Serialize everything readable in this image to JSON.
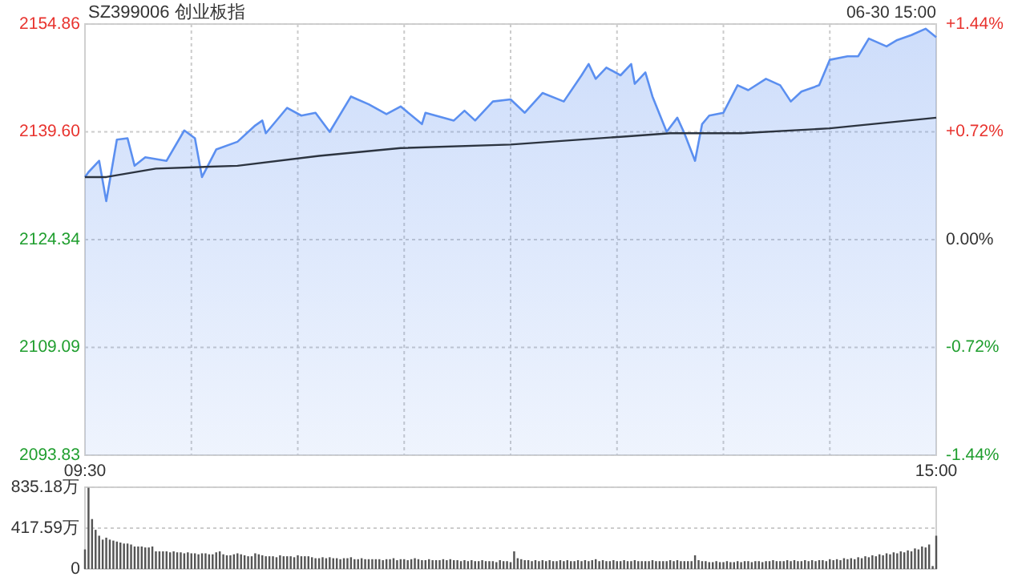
{
  "chart_data": [
    {
      "type": "area",
      "title": "SZ399006 创业板指",
      "subtitle": "06-30 15:00",
      "categories": [
        "09:30",
        null,
        null,
        null,
        null,
        null,
        null,
        null,
        null,
        null,
        null,
        null,
        null,
        null,
        null,
        null,
        null,
        null,
        null,
        null,
        null,
        null,
        null,
        null,
        null,
        null,
        null,
        null,
        null,
        null,
        null,
        null,
        null,
        null,
        null,
        null,
        null,
        null,
        null,
        null,
        null,
        null,
        null,
        null,
        null,
        null,
        null,
        null,
        null,
        null,
        null,
        null,
        null,
        null,
        null,
        null,
        null,
        null,
        null,
        null,
        null,
        null,
        null,
        null,
        null,
        null,
        null,
        null,
        null,
        null,
        null,
        null,
        null,
        null,
        null,
        null,
        null,
        null,
        null,
        null,
        null,
        null,
        null,
        null,
        null,
        null,
        null,
        null,
        null,
        null,
        null,
        null,
        null,
        null,
        null,
        null,
        null,
        null,
        null,
        null,
        null,
        null,
        null,
        null,
        null,
        null,
        null,
        null,
        null,
        null,
        null,
        null,
        null,
        null,
        null,
        null,
        null,
        null,
        null,
        null,
        null,
        null,
        null,
        null,
        null,
        null,
        null,
        null,
        null,
        null,
        null,
        null,
        null,
        null,
        null,
        null,
        null,
        null,
        null,
        null,
        null,
        null,
        null,
        null,
        null,
        null,
        null,
        null,
        null,
        null,
        null,
        null,
        null,
        null,
        null,
        null,
        null,
        null,
        null,
        null,
        null,
        null,
        null,
        null,
        null,
        null,
        null,
        null,
        null,
        null,
        null,
        null,
        null,
        null,
        null,
        null,
        null,
        null,
        null,
        null,
        null,
        null,
        null,
        null,
        null,
        null,
        null,
        null,
        null,
        null,
        null,
        null,
        null,
        null,
        null,
        null,
        null,
        null,
        null,
        null,
        null,
        null,
        null,
        null,
        null,
        null,
        null,
        null,
        null,
        null,
        null,
        null,
        null,
        null,
        null,
        null,
        null,
        null,
        null,
        null,
        null,
        null,
        null,
        null,
        null,
        null,
        null,
        null,
        null,
        null,
        null,
        null,
        null,
        null,
        null,
        null,
        null,
        null,
        null,
        null,
        "15:00"
      ],
      "series": [
        {
          "color": "#5b8ff0",
          "values": [
            2133.2,
            2133.9,
            null,
            null,
            2135.5,
            null,
            2129.8,
            null,
            null,
            2138.5,
            null,
            null,
            2138.7,
            null,
            2134.8,
            null,
            null,
            2136.0,
            null,
            null,
            null,
            null,
            null,
            2135.5,
            null,
            null,
            null,
            null,
            2139.8,
            null,
            null,
            2138.7,
            null,
            2133.2,
            null,
            null,
            null,
            2137.1,
            null,
            null,
            null,
            null,
            null,
            2138.2,
            null,
            null,
            null,
            null,
            2140.5,
            null,
            2141.2,
            2139.4,
            null,
            null,
            null,
            null,
            null,
            2143.0,
            null,
            null,
            null,
            2141.9,
            null,
            null,
            null,
            2142.3,
            null,
            null,
            null,
            2139.6,
            null,
            null,
            null,
            null,
            null,
            2144.6,
            null,
            null,
            null,
            null,
            2143.5,
            null,
            null,
            null,
            null,
            2142.1,
            null,
            null,
            null,
            2143.2,
            null,
            null,
            null,
            null,
            null,
            2140.7,
            2142.3,
            null,
            null,
            null,
            null,
            null,
            null,
            null,
            2141.2,
            null,
            null,
            2142.6,
            null,
            null,
            2141.2,
            null,
            null,
            null,
            null,
            2143.9,
            null,
            null,
            null,
            null,
            2144.2,
            null,
            null,
            null,
            2142.3,
            null,
            null,
            null,
            null,
            2145.1,
            null,
            null,
            null,
            null,
            null,
            2143.9,
            null,
            null,
            null,
            null,
            2147.6,
            null,
            2149.2,
            null,
            2147.1,
            null,
            null,
            2148.7,
            null,
            null,
            null,
            2147.6,
            null,
            null,
            2149.2,
            2146.4,
            null,
            null,
            2148.0,
            null,
            2144.6,
            null,
            null,
            null,
            2139.6,
            null,
            null,
            2141.6,
            null,
            2139.4,
            null,
            null,
            2135.5,
            null,
            2140.7,
            null,
            2141.9,
            null,
            null,
            null,
            2142.3,
            null,
            null,
            null,
            2146.2,
            null,
            null,
            2145.5,
            null,
            null,
            null,
            null,
            2147.1,
            null,
            null,
            null,
            2146.2,
            null,
            null,
            2143.9,
            null,
            null,
            2145.3,
            null,
            null,
            null,
            null,
            2146.2,
            null,
            null,
            2149.8,
            null,
            null,
            null,
            null,
            2150.3,
            null,
            null,
            2150.3,
            null,
            null,
            2152.8,
            null,
            null,
            null,
            null,
            2151.7,
            null,
            null,
            2152.6,
            null,
            null,
            null,
            2153.3,
            null,
            null,
            null,
            2154.2,
            null,
            null,
            2153.0
          ]
        },
        {
          "type": "line",
          "color": "#2c3440",
          "values": [
            2133.2,
            null,
            null,
            null,
            null,
            null,
            2133.2,
            null,
            null,
            null,
            null,
            null,
            null,
            null,
            null,
            null,
            null,
            null,
            null,
            null,
            2134.4,
            null,
            null,
            null,
            null,
            null,
            null,
            null,
            null,
            null,
            null,
            null,
            null,
            null,
            null,
            null,
            null,
            null,
            null,
            null,
            null,
            null,
            null,
            2134.8,
            null,
            null,
            null,
            null,
            null,
            null,
            null,
            null,
            null,
            null,
            null,
            null,
            null,
            null,
            null,
            null,
            null,
            null,
            null,
            null,
            null,
            null,
            2136.2,
            null,
            null,
            null,
            null,
            null,
            null,
            null,
            null,
            null,
            null,
            null,
            null,
            null,
            null,
            null,
            null,
            null,
            null,
            null,
            null,
            null,
            null,
            2137.3,
            null,
            null,
            null,
            null,
            null,
            null,
            null,
            null,
            null,
            null,
            null,
            null,
            null,
            null,
            null,
            null,
            null,
            null,
            null,
            null,
            null,
            null,
            null,
            null,
            null,
            null,
            null,
            null,
            null,
            null,
            2137.8,
            null,
            null,
            null,
            null,
            null,
            null,
            null,
            null,
            null,
            null,
            null,
            null,
            null,
            null,
            null,
            null,
            null,
            null,
            null,
            null,
            null,
            null,
            null,
            null,
            null,
            null,
            null,
            null,
            null,
            null,
            2138.9,
            null,
            null,
            null,
            null,
            null,
            null,
            null,
            null,
            null,
            null,
            null,
            null,
            null,
            2139.4,
            null,
            null,
            null,
            null,
            null,
            null,
            null,
            null,
            null,
            null,
            null,
            null,
            null,
            null,
            null,
            null,
            null,
            null,
            null,
            2139.4,
            null,
            null,
            null,
            null,
            null,
            null,
            null,
            null,
            null,
            null,
            null,
            null,
            null,
            null,
            null,
            null,
            null,
            null,
            null,
            null,
            null,
            null,
            null,
            null,
            2140.1,
            null,
            null,
            null,
            null,
            null,
            null,
            null,
            null,
            null,
            null,
            null,
            null,
            null,
            null,
            null,
            null,
            null,
            null,
            null,
            null,
            null,
            null,
            null,
            null,
            null,
            null,
            null,
            null,
            null,
            2141.6
          ]
        }
      ],
      "ylim": [
        2093.83,
        2154.86
      ],
      "yticks": [
        {
          "value": 2093.83,
          "label": "2093.83"
        },
        {
          "value": 2109.09,
          "label": "2109.09"
        },
        {
          "value": 2124.34,
          "label": "2124.34"
        },
        {
          "value": 2139.6,
          "label": "2139.60"
        },
        {
          "value": 2154.86,
          "label": "2154.86"
        }
      ],
      "y2lim": [
        -1.44,
        1.44
      ],
      "y2ticks": [
        {
          "value": -1.44,
          "label": "-1.44%"
        },
        {
          "value": -0.72,
          "label": "-0.72%"
        },
        {
          "value": 0,
          "label": "0.00%"
        },
        {
          "value": 0.72,
          "label": "+0.72%"
        },
        {
          "value": 1.44,
          "label": "+1.44%"
        }
      ],
      "grid": true
    },
    {
      "type": "bar",
      "color": "#555555",
      "categories": [
        null,
        null,
        null,
        null,
        null,
        null,
        null,
        null,
        null,
        null,
        null,
        null,
        null,
        null,
        null,
        null,
        null,
        null,
        null,
        null,
        null,
        null,
        null,
        null,
        null,
        null,
        null,
        null,
        null,
        null,
        null,
        null,
        null,
        null,
        null,
        null,
        null,
        null,
        null,
        null,
        null,
        null,
        null,
        null,
        null,
        null,
        null,
        null,
        null,
        null,
        null,
        null,
        null,
        null,
        null,
        null,
        null,
        null,
        null,
        null,
        null,
        null,
        null,
        null,
        null,
        null,
        null,
        null,
        null,
        null,
        null,
        null,
        null,
        null,
        null,
        null,
        null,
        null,
        null,
        null,
        null,
        null,
        null,
        null,
        null,
        null,
        null,
        null,
        null,
        null,
        null,
        null,
        null,
        null,
        null,
        null,
        null,
        null,
        null,
        null,
        null,
        null,
        null,
        null,
        null,
        null,
        null,
        null,
        null,
        null,
        null,
        null,
        null,
        null,
        null,
        null,
        null,
        null,
        null,
        null,
        null,
        null,
        null,
        null,
        null,
        null,
        null,
        null,
        null,
        null,
        null,
        null,
        null,
        null,
        null,
        null,
        null,
        null,
        null,
        null,
        null,
        null,
        null,
        null,
        null,
        null,
        null,
        null,
        null,
        null,
        null,
        null,
        null,
        null,
        null,
        null,
        null,
        null,
        null,
        null,
        null,
        null,
        null,
        null,
        null,
        null,
        null,
        null,
        null,
        null,
        null,
        null,
        null,
        null,
        null,
        null,
        null,
        null,
        null,
        null,
        null,
        null,
        null,
        null,
        null,
        null,
        null,
        null,
        null,
        null,
        null,
        null,
        null,
        null,
        null,
        null,
        null,
        null,
        null,
        null,
        null,
        null,
        null,
        null,
        null,
        null,
        null,
        null,
        null,
        null,
        null,
        null,
        null,
        null,
        null,
        null,
        null,
        null,
        null,
        null,
        null,
        null,
        null,
        null,
        null,
        null,
        null,
        null,
        null,
        null,
        null,
        null,
        null,
        null,
        null,
        null,
        null,
        null,
        null,
        null,
        null
      ],
      "values": [
        200,
        830,
        510,
        400,
        340,
        300,
        320,
        300,
        290,
        280,
        270,
        260,
        260,
        250,
        230,
        230,
        230,
        220,
        220,
        230,
        180,
        180,
        180,
        180,
        170,
        180,
        170,
        170,
        160,
        170,
        160,
        160,
        150,
        160,
        160,
        150,
        150,
        170,
        180,
        150,
        140,
        140,
        150,
        160,
        150,
        140,
        130,
        130,
        160,
        150,
        140,
        130,
        130,
        130,
        120,
        140,
        130,
        130,
        130,
        120,
        140,
        130,
        130,
        130,
        120,
        110,
        110,
        120,
        110,
        120,
        110,
        110,
        100,
        110,
        110,
        120,
        100,
        100,
        110,
        100,
        100,
        100,
        100,
        100,
        90,
        100,
        100,
        110,
        90,
        100,
        100,
        90,
        100,
        110,
        100,
        90,
        90,
        100,
        90,
        90,
        90,
        100,
        90,
        100,
        90,
        90,
        80,
        90,
        80,
        90,
        80,
        80,
        90,
        80,
        80,
        80,
        70,
        90,
        80,
        80,
        70,
        180,
        110,
        100,
        90,
        90,
        80,
        90,
        80,
        90,
        80,
        90,
        80,
        80,
        90,
        80,
        90,
        80,
        80,
        90,
        80,
        90,
        80,
        90,
        100,
        80,
        90,
        80,
        80,
        90,
        80,
        80,
        90,
        80,
        80,
        90,
        80,
        80,
        80,
        80,
        90,
        80,
        80,
        80,
        80,
        90,
        80,
        90,
        80,
        80,
        80,
        80,
        140,
        90,
        80,
        80,
        70,
        70,
        80,
        70,
        70,
        80,
        70,
        70,
        80,
        70,
        80,
        80,
        70,
        80,
        80,
        70,
        80,
        80,
        90,
        80,
        80,
        80,
        90,
        80,
        90,
        80,
        80,
        90,
        80,
        90,
        80,
        90,
        90,
        80,
        100,
        90,
        100,
        90,
        110,
        100,
        110,
        100,
        120,
        110,
        130,
        120,
        140,
        130,
        150,
        140,
        160,
        150,
        170,
        160,
        180,
        170,
        190,
        180,
        210,
        200,
        230,
        220,
        250,
        30,
        340
      ],
      "ylim": [
        0,
        835.18
      ],
      "yticks": [
        {
          "value": 0,
          "label": "0"
        },
        {
          "value": 417.59,
          "label": "417.59万"
        },
        {
          "value": 835.18,
          "label": "835.18万"
        }
      ],
      "grid": "y"
    }
  ]
}
